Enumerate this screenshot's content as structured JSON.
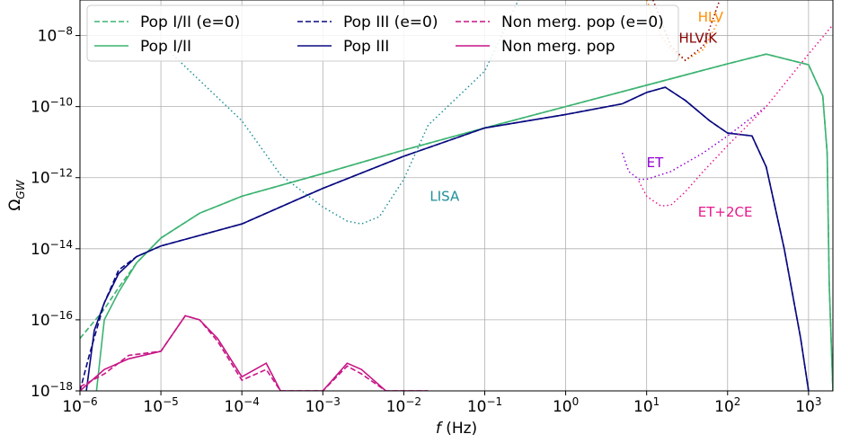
{
  "chart_data": {
    "type": "line",
    "title": "",
    "xlabel": "f (Hz)",
    "ylabel": "Ω_GW",
    "xscale": "log",
    "yscale": "log",
    "xlim": [
      1e-06,
      2000
    ],
    "ylim": [
      1e-18,
      1e-07
    ],
    "grid": true,
    "legend_position": "top-left",
    "x_tick_exponents": [
      -6,
      -5,
      -4,
      -3,
      -2,
      -1,
      0,
      1,
      2,
      3
    ],
    "y_tick_exponents": [
      -18,
      -16,
      -14,
      -12,
      -10,
      -8
    ],
    "tick_base": "10",
    "legend": [
      {
        "label": "Pop I/II (e=0)",
        "color": "#3cb371",
        "dash": true
      },
      {
        "label": "Pop I/II",
        "color": "#3cb371",
        "dash": false
      },
      {
        "label": "Pop III (e=0)",
        "color": "#0a0a80",
        "dash": true
      },
      {
        "label": "Pop III",
        "color": "#0a0a80",
        "dash": false
      },
      {
        "label": "Non merg. pop (e=0)",
        "color": "#c71585",
        "dash": true
      },
      {
        "label": "Non merg. pop",
        "color": "#c71585",
        "dash": false
      }
    ],
    "series": [
      {
        "name": "Pop I/II (e=0)",
        "color": "#3cb371",
        "style": "dashed",
        "x": [
          1e-06,
          2e-06,
          3e-06,
          5e-06,
          1e-05,
          3e-05,
          0.0001,
          0.001,
          0.01,
          0.1,
          1,
          10,
          100,
          300,
          1000,
          1500,
          1700,
          1800,
          2000
        ],
        "y": [
          3e-17,
          2e-16,
          8e-16,
          4e-15,
          2e-14,
          1e-13,
          3e-13,
          1.3e-12,
          6e-12,
          2.5e-11,
          1e-10,
          4e-10,
          1.6e-09,
          3e-09,
          1.5e-09,
          2e-10,
          5e-12,
          1e-15,
          1e-18
        ]
      },
      {
        "name": "Pop I/II",
        "color": "#3cb371",
        "style": "solid",
        "x": [
          1.6e-06,
          2e-06,
          3e-06,
          5e-06,
          1e-05,
          3e-05,
          0.0001,
          0.001,
          0.01,
          0.1,
          1,
          10,
          100,
          300,
          1000,
          1500,
          1700,
          1800,
          2000
        ],
        "y": [
          1e-18,
          1e-16,
          6e-16,
          4e-15,
          2e-14,
          1e-13,
          3e-13,
          1.3e-12,
          6e-12,
          2.5e-11,
          1e-10,
          4e-10,
          1.6e-09,
          3e-09,
          1.5e-09,
          2e-10,
          5e-12,
          1e-15,
          1e-18
        ]
      },
      {
        "name": "Pop III (e=0)",
        "color": "#0a0a80",
        "style": "dashed",
        "x": [
          1e-06,
          1.3e-06,
          2e-06,
          3e-06,
          5e-06,
          1e-05,
          0.0001,
          0.001,
          0.01,
          0.1,
          1,
          5,
          10,
          17,
          30,
          60,
          100,
          200,
          300,
          500,
          800,
          1000
        ],
        "y": [
          1e-18,
          1e-17,
          3e-16,
          2.5e-15,
          6e-15,
          1.2e-14,
          5e-14,
          5e-13,
          4e-12,
          2.5e-11,
          6e-11,
          1.2e-10,
          2.5e-10,
          3.5e-10,
          1.5e-10,
          4e-11,
          1.8e-11,
          1.5e-11,
          2e-12,
          1e-14,
          3e-17,
          1e-18
        ]
      },
      {
        "name": "Pop III",
        "color": "#0a0a80",
        "style": "solid",
        "x": [
          1.2e-06,
          1.5e-06,
          2e-06,
          3e-06,
          5e-06,
          1e-05,
          0.0001,
          0.001,
          0.01,
          0.1,
          1,
          5,
          10,
          17,
          30,
          60,
          100,
          200,
          300,
          500,
          800,
          1000
        ],
        "y": [
          1e-18,
          5e-17,
          3e-16,
          2e-15,
          6e-15,
          1.2e-14,
          5e-14,
          5e-13,
          4e-12,
          2.5e-11,
          6e-11,
          1.2e-10,
          2.5e-10,
          3.5e-10,
          1.5e-10,
          4e-11,
          1.8e-11,
          1.5e-11,
          2e-12,
          1e-14,
          3e-17,
          1e-18
        ]
      },
      {
        "name": "Non merg. pop (e=0)",
        "color": "#c71585",
        "style": "dashed",
        "x": [
          1e-06,
          2e-06,
          4e-06,
          1e-05,
          2e-05,
          3e-05,
          5e-05,
          0.0001,
          0.0002,
          0.0003,
          0.0005,
          0.001,
          0.002,
          0.003,
          0.006,
          0.01,
          0.02
        ],
        "y": [
          1.3e-18,
          3e-18,
          1e-17,
          1.3e-17,
          1.3e-16,
          1e-16,
          2.5e-17,
          2e-18,
          4e-18,
          1e-18,
          1e-18,
          1e-18,
          5e-18,
          3e-18,
          1e-18,
          1e-18,
          1e-18
        ]
      },
      {
        "name": "Non merg. pop",
        "color": "#c71585",
        "style": "solid",
        "x": [
          1e-06,
          2e-06,
          4e-06,
          1e-05,
          2e-05,
          3e-05,
          5e-05,
          0.0001,
          0.0002,
          0.0003,
          0.0005,
          0.001,
          0.002,
          0.003,
          0.006,
          0.01,
          0.02
        ],
        "y": [
          1e-18,
          4e-18,
          8e-18,
          1.3e-17,
          1.3e-16,
          1e-16,
          3e-17,
          2.5e-18,
          6e-18,
          1e-18,
          1e-18,
          1e-18,
          6e-18,
          4e-18,
          1e-18,
          1e-18,
          1e-18
        ]
      }
    ],
    "sensitivity_curves": [
      {
        "name": "LISA",
        "color": "#1f8f99",
        "x": [
          1e-05,
          0.0001,
          0.0003,
          0.001,
          0.002,
          0.003,
          0.005,
          0.01,
          0.02,
          0.1,
          0.3
        ],
        "y": [
          6e-09,
          4e-11,
          1.2e-12,
          1.5e-13,
          6e-14,
          5e-14,
          8e-14,
          9e-13,
          3e-11,
          1e-09,
          2e-07
        ]
      },
      {
        "name": "ET",
        "color": "#9400d3",
        "x": [
          5,
          6,
          8,
          10,
          20,
          50,
          100,
          300
        ],
        "y": [
          5e-12,
          1.5e-12,
          9e-13,
          9e-13,
          1.5e-12,
          5e-12,
          1.5e-11,
          1e-10
        ]
      },
      {
        "name": "ET+2CE",
        "color": "#e6198c",
        "x": [
          8,
          10,
          15,
          20,
          30,
          50,
          100,
          300,
          1000,
          2000
        ],
        "y": [
          8e-13,
          3e-13,
          1.6e-13,
          1.7e-13,
          4e-13,
          1.5e-12,
          8e-12,
          1e-10,
          3e-09,
          2e-08
        ]
      },
      {
        "name": "HLV",
        "color": "#ff8c00",
        "x": [
          10,
          15,
          20,
          30,
          50,
          80
        ],
        "y": [
          1e-07,
          1e-08,
          4e-09,
          2e-09,
          4e-09,
          3e-08
        ]
      },
      {
        "name": "HLVIK",
        "color": "#8b0000",
        "x": [
          12,
          20,
          30,
          50,
          80
        ],
        "y": [
          1e-07,
          5e-09,
          2e-09,
          5e-09,
          1e-07
        ]
      }
    ],
    "annotations": [
      {
        "text": "LISA",
        "color": "#1f8f99",
        "x": 0.021,
        "y": 2.2e-13
      },
      {
        "text": "ET",
        "color": "#9400d3",
        "x": 10,
        "y": 2e-12
      },
      {
        "text": "ET+2CE",
        "color": "#e6198c",
        "x": 43,
        "y": 8e-14
      },
      {
        "text": "HLV",
        "color": "#ff8c00",
        "x": 43,
        "y": 2.5e-08
      },
      {
        "text": "HLVIK",
        "color": "#8b0000",
        "x": 25,
        "y": 6.3e-09
      }
    ]
  }
}
